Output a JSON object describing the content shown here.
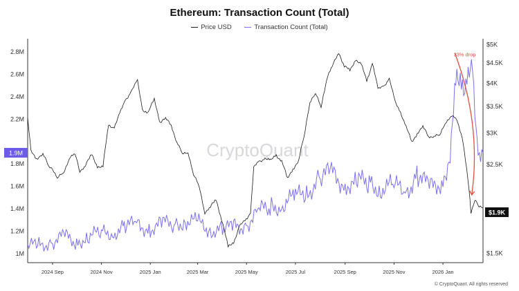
{
  "title": "Ethereum: Transaction Count (Total)",
  "footer": "© CryptoQuant. All rights reserved",
  "watermark": "CryptoQuant",
  "colors": {
    "price": "#1a1a1a",
    "tx": "#7b6ff0",
    "annotation": "#e05040",
    "left_marker_bg": "#6c5ce7",
    "right_marker_bg": "#111111"
  },
  "chart_data": {
    "type": "line",
    "title": "Ethereum: Transaction Count (Total)",
    "x_ticks": [
      "2024 Sep",
      "2024 Nov",
      "2025 Jan",
      "2025 Mar",
      "2025 May",
      "2025 Jul",
      "2025 Sep",
      "2025 Nov",
      "2026 Jan"
    ],
    "x_range": [
      "2024-08-01",
      "2026-02-20"
    ],
    "left_axis": {
      "ticks": [
        "1M",
        "1.2M",
        "1.4M",
        "1.6M",
        "1.8M",
        "2.2M",
        "2.4M",
        "2.6M",
        "2.8M"
      ],
      "tick_values": [
        1000000,
        1200000,
        1400000,
        1600000,
        1800000,
        2200000,
        2400000,
        2600000,
        2800000
      ],
      "range": [
        920000,
        2880000
      ],
      "current_label": "1.9M",
      "current_value": 1900000
    },
    "right_axis": {
      "scale": "log",
      "ticks": [
        "$1.5K",
        "$2.5K",
        "$3K",
        "$3.5K",
        "$4K",
        "$4.5K",
        "$5K"
      ],
      "tick_values": [
        1500,
        2500,
        3000,
        3500,
        4000,
        4500,
        5000
      ],
      "range": [
        1420,
        5050
      ],
      "current_label": "$1.9K",
      "current_value": 1900
    },
    "grid": false,
    "legend_position": "top",
    "series": [
      {
        "name": "Price USD",
        "axis": "right",
        "points": [
          [
            "2024-08-01",
            3270
          ],
          [
            "2024-08-05",
            2700
          ],
          [
            "2024-08-12",
            2600
          ],
          [
            "2024-08-20",
            2650
          ],
          [
            "2024-08-27",
            2480
          ],
          [
            "2024-09-01",
            2450
          ],
          [
            "2024-09-07",
            2300
          ],
          [
            "2024-09-15",
            2400
          ],
          [
            "2024-09-22",
            2600
          ],
          [
            "2024-09-29",
            2650
          ],
          [
            "2024-10-05",
            2420
          ],
          [
            "2024-10-12",
            2480
          ],
          [
            "2024-10-20",
            2650
          ],
          [
            "2024-10-27",
            2480
          ],
          [
            "2024-11-03",
            2460
          ],
          [
            "2024-11-10",
            3150
          ],
          [
            "2024-11-17",
            3100
          ],
          [
            "2024-11-24",
            3350
          ],
          [
            "2024-12-01",
            3650
          ],
          [
            "2024-12-08",
            3800
          ],
          [
            "2024-12-16",
            4050
          ],
          [
            "2024-12-22",
            3450
          ],
          [
            "2024-12-29",
            3350
          ],
          [
            "2025-01-06",
            3650
          ],
          [
            "2025-01-13",
            3200
          ],
          [
            "2025-01-20",
            3250
          ],
          [
            "2025-01-27",
            3150
          ],
          [
            "2025-02-03",
            2850
          ],
          [
            "2025-02-10",
            2650
          ],
          [
            "2025-02-17",
            2700
          ],
          [
            "2025-02-24",
            2350
          ],
          [
            "2025-03-03",
            2200
          ],
          [
            "2025-03-10",
            1900
          ],
          [
            "2025-03-17",
            1950
          ],
          [
            "2025-03-24",
            2050
          ],
          [
            "2025-03-31",
            1820
          ],
          [
            "2025-04-08",
            1550
          ],
          [
            "2025-04-15",
            1600
          ],
          [
            "2025-04-22",
            1750
          ],
          [
            "2025-04-29",
            1800
          ],
          [
            "2025-05-06",
            1900
          ],
          [
            "2025-05-10",
            2450
          ],
          [
            "2025-05-17",
            2550
          ],
          [
            "2025-05-24",
            2600
          ],
          [
            "2025-05-31",
            2550
          ],
          [
            "2025-06-07",
            2650
          ],
          [
            "2025-06-14",
            2550
          ],
          [
            "2025-06-21",
            2300
          ],
          [
            "2025-06-28",
            2450
          ],
          [
            "2025-07-05",
            2550
          ],
          [
            "2025-07-12",
            2950
          ],
          [
            "2025-07-19",
            3600
          ],
          [
            "2025-07-26",
            3750
          ],
          [
            "2025-08-02",
            3500
          ],
          [
            "2025-08-09",
            4100
          ],
          [
            "2025-08-16",
            4400
          ],
          [
            "2025-08-24",
            4800
          ],
          [
            "2025-08-31",
            4400
          ],
          [
            "2025-09-07",
            4300
          ],
          [
            "2025-09-14",
            4600
          ],
          [
            "2025-09-21",
            4450
          ],
          [
            "2025-09-28",
            4050
          ],
          [
            "2025-10-05",
            4500
          ],
          [
            "2025-10-12",
            3850
          ],
          [
            "2025-10-19",
            3950
          ],
          [
            "2025-10-26",
            4100
          ],
          [
            "2025-11-02",
            3600
          ],
          [
            "2025-11-09",
            3400
          ],
          [
            "2025-11-16",
            3100
          ],
          [
            "2025-11-23",
            2850
          ],
          [
            "2025-11-30",
            3000
          ],
          [
            "2025-12-07",
            3100
          ],
          [
            "2025-12-14",
            2950
          ],
          [
            "2025-12-21",
            2950
          ],
          [
            "2025-12-28",
            2950
          ],
          [
            "2026-01-04",
            3200
          ],
          [
            "2026-01-11",
            3300
          ],
          [
            "2026-01-18",
            3250
          ],
          [
            "2026-01-25",
            2950
          ],
          [
            "2026-02-01",
            2300
          ],
          [
            "2026-02-05",
            1900
          ],
          [
            "2026-02-10",
            2050
          ],
          [
            "2026-02-15",
            1950
          ],
          [
            "2026-02-20",
            1950
          ]
        ]
      },
      {
        "name": "Transaction Count (Total)",
        "axis": "left",
        "points": [
          [
            "2024-08-01",
            1050000
          ],
          [
            "2024-08-15",
            1080000
          ],
          [
            "2024-09-01",
            1120000
          ],
          [
            "2024-09-15",
            1140000
          ],
          [
            "2024-10-01",
            1120000
          ],
          [
            "2024-10-15",
            1150000
          ],
          [
            "2024-11-01",
            1170000
          ],
          [
            "2024-11-15",
            1200000
          ],
          [
            "2024-12-01",
            1230000
          ],
          [
            "2024-12-15",
            1260000
          ],
          [
            "2025-01-01",
            1240000
          ],
          [
            "2025-01-15",
            1250000
          ],
          [
            "2025-02-01",
            1280000
          ],
          [
            "2025-02-15",
            1300000
          ],
          [
            "2025-03-01",
            1260000
          ],
          [
            "2025-03-15",
            1230000
          ],
          [
            "2025-04-01",
            1200000
          ],
          [
            "2025-04-15",
            1230000
          ],
          [
            "2025-05-01",
            1280000
          ],
          [
            "2025-05-15",
            1360000
          ],
          [
            "2025-06-01",
            1420000
          ],
          [
            "2025-06-15",
            1450000
          ],
          [
            "2025-07-01",
            1480000
          ],
          [
            "2025-07-15",
            1560000
          ],
          [
            "2025-08-01",
            1680000
          ],
          [
            "2025-08-15",
            1700000
          ],
          [
            "2025-09-01",
            1650000
          ],
          [
            "2025-09-15",
            1620000
          ],
          [
            "2025-10-01",
            1640000
          ],
          [
            "2025-10-15",
            1600000
          ],
          [
            "2025-11-01",
            1580000
          ],
          [
            "2025-11-15",
            1560000
          ],
          [
            "2025-12-01",
            1720000
          ],
          [
            "2025-12-15",
            1560000
          ],
          [
            "2026-01-01",
            1680000
          ],
          [
            "2026-01-10",
            1900000
          ],
          [
            "2026-01-17",
            2450000
          ],
          [
            "2026-01-24",
            2620000
          ],
          [
            "2026-01-31",
            2500000
          ],
          [
            "2026-02-07",
            2560000
          ],
          [
            "2026-02-14",
            1950000
          ],
          [
            "2026-02-20",
            1900000
          ]
        ]
      }
    ],
    "annotations": [
      {
        "text": "33% drop",
        "from": [
          "2026-01-16",
          4750
        ],
        "to": [
          "2026-02-06",
          2100
        ]
      }
    ]
  }
}
